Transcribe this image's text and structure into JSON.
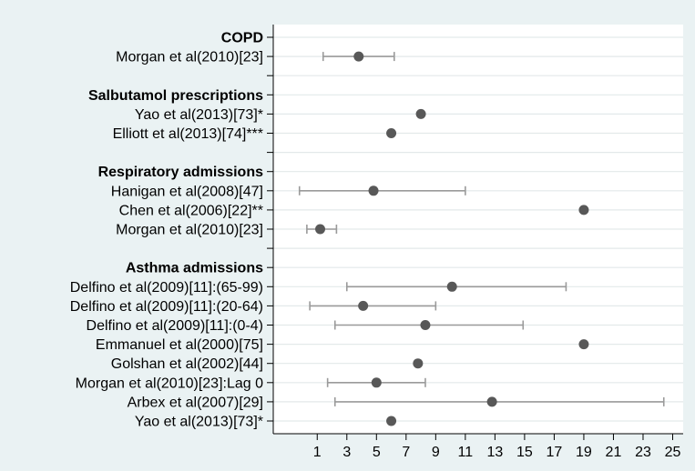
{
  "chart_data": {
    "type": "forest",
    "xlim": [
      -1,
      25.5
    ],
    "xticks": [
      1,
      3,
      5,
      7,
      9,
      11,
      13,
      15,
      17,
      19,
      21,
      23,
      25
    ],
    "grid": true,
    "colors": {
      "background": "#eaf2f3",
      "panel": "#ffffff",
      "grid": "#e3e9ea",
      "point": "#585858",
      "ci": "#9a9a9a",
      "text": "#000000"
    },
    "rows": [
      {
        "label": "COPD",
        "header": true
      },
      {
        "label": "Morgan et al(2010)[23]",
        "est": 3.8,
        "lo": 1.4,
        "hi": 6.2
      },
      {
        "label": "",
        "spacer": true
      },
      {
        "label": "Salbutamol prescriptions",
        "header": true
      },
      {
        "label": "Yao et al(2013)[73]*",
        "est": 8.0
      },
      {
        "label": "Elliott et al(2013)[74]***",
        "est": 6.0
      },
      {
        "label": "",
        "spacer": true
      },
      {
        "label": "Respiratory admissions",
        "header": true
      },
      {
        "label": "Hanigan et al(2008)[47]",
        "est": 4.8,
        "lo": -0.2,
        "hi": 11.0
      },
      {
        "label": "Chen et al(2006)[22]**",
        "est": 19.0
      },
      {
        "label": "Morgan et al(2010)[23]",
        "est": 1.2,
        "lo": 0.3,
        "hi": 2.3
      },
      {
        "label": "",
        "spacer": true
      },
      {
        "label": "Asthma admissions",
        "header": true
      },
      {
        "label": "Delfino et al(2009)[11]:(65-99)",
        "est": 10.1,
        "lo": 3.0,
        "hi": 17.8
      },
      {
        "label": "Delfino et al(2009)[11]:(20-64)",
        "est": 4.1,
        "lo": 0.5,
        "hi": 9.0
      },
      {
        "label": "Delfino et al(2009)[11]:(0-4)",
        "est": 8.3,
        "lo": 2.2,
        "hi": 14.9
      },
      {
        "label": "Emmanuel et al(2000)[75]",
        "est": 19.0
      },
      {
        "label": "Golshan et al(2002)[44]",
        "est": 7.8
      },
      {
        "label": "Morgan et al(2010)[23]:Lag 0",
        "est": 5.0,
        "lo": 1.7,
        "hi": 8.3
      },
      {
        "label": "Arbex et al(2007)[29]",
        "est": 12.8,
        "lo": 2.2,
        "hi": 24.4
      },
      {
        "label": "Yao et al(2013)[73]*",
        "est": 6.0
      }
    ]
  }
}
